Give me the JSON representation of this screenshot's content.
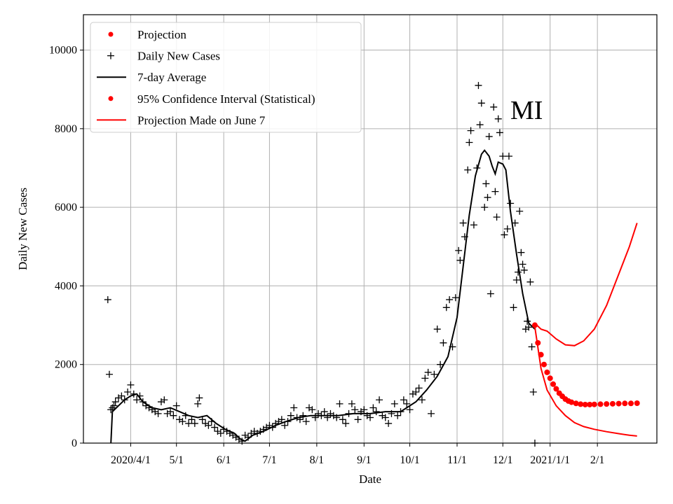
{
  "chart_data": {
    "type": "line",
    "annotation": "MI",
    "xlabel": "Date",
    "ylabel": "Daily New Cases",
    "ylim": [
      0,
      10900
    ],
    "xlim": [
      "2020-03-01",
      "2021-03-12"
    ],
    "grid": true,
    "legend_placement": "top-left",
    "x_ticks": [
      {
        "date": "2020-04-01",
        "label": "2020/4/1"
      },
      {
        "date": "2020-05-01",
        "label": "5/1"
      },
      {
        "date": "2020-06-01",
        "label": "6/1"
      },
      {
        "date": "2020-07-01",
        "label": "7/1"
      },
      {
        "date": "2020-08-01",
        "label": "8/1"
      },
      {
        "date": "2020-09-01",
        "label": "9/1"
      },
      {
        "date": "2020-10-01",
        "label": "10/1"
      },
      {
        "date": "2020-11-01",
        "label": "11/1"
      },
      {
        "date": "2020-12-01",
        "label": "12/1"
      },
      {
        "date": "2021-01-01",
        "label": "2021/1/1"
      },
      {
        "date": "2021-02-01",
        "label": "2/1"
      }
    ],
    "y_ticks": [
      0,
      2000,
      4000,
      6000,
      8000,
      10000
    ],
    "legend": [
      {
        "label": "Projection",
        "marker": "dot",
        "color": "#ff0000"
      },
      {
        "label": "Daily New Cases",
        "marker": "plus",
        "color": "#000000"
      },
      {
        "label": "7-day Average",
        "marker": "line",
        "color": "#000000"
      },
      {
        "label": "95% Confidence Interval (Statistical)",
        "marker": "dot",
        "color": "#ff0000"
      },
      {
        "label": "Projection Made on June 7",
        "marker": "line",
        "color": "#ff0000"
      }
    ],
    "series": [
      {
        "name": "Daily New Cases",
        "marker": "plus",
        "color": "#000000",
        "points": [
          [
            "2020-03-17",
            3650
          ],
          [
            "2020-03-18",
            1750
          ],
          [
            "2020-03-19",
            850
          ],
          [
            "2020-03-20",
            900
          ],
          [
            "2020-03-21",
            950
          ],
          [
            "2020-03-22",
            1050
          ],
          [
            "2020-03-24",
            1150
          ],
          [
            "2020-03-26",
            1200
          ],
          [
            "2020-03-28",
            1100
          ],
          [
            "2020-03-30",
            1300
          ],
          [
            "2020-04-01",
            1480
          ],
          [
            "2020-04-03",
            1250
          ],
          [
            "2020-04-05",
            1100
          ],
          [
            "2020-04-07",
            1200
          ],
          [
            "2020-04-09",
            1050
          ],
          [
            "2020-04-11",
            950
          ],
          [
            "2020-04-13",
            900
          ],
          [
            "2020-04-15",
            850
          ],
          [
            "2020-04-17",
            800
          ],
          [
            "2020-04-19",
            750
          ],
          [
            "2020-04-21",
            1050
          ],
          [
            "2020-04-23",
            1100
          ],
          [
            "2020-04-25",
            750
          ],
          [
            "2020-04-27",
            800
          ],
          [
            "2020-04-29",
            700
          ],
          [
            "2020-05-01",
            950
          ],
          [
            "2020-05-03",
            600
          ],
          [
            "2020-05-05",
            550
          ],
          [
            "2020-05-07",
            700
          ],
          [
            "2020-05-09",
            500
          ],
          [
            "2020-05-11",
            600
          ],
          [
            "2020-05-13",
            500
          ],
          [
            "2020-05-15",
            1000
          ],
          [
            "2020-05-16",
            1150
          ],
          [
            "2020-05-18",
            600
          ],
          [
            "2020-05-20",
            500
          ],
          [
            "2020-05-22",
            450
          ],
          [
            "2020-05-24",
            550
          ],
          [
            "2020-05-26",
            400
          ],
          [
            "2020-05-28",
            300
          ],
          [
            "2020-05-30",
            250
          ],
          [
            "2020-06-01",
            350
          ],
          [
            "2020-06-03",
            300
          ],
          [
            "2020-06-05",
            250
          ],
          [
            "2020-06-07",
            200
          ],
          [
            "2020-06-09",
            150
          ],
          [
            "2020-06-11",
            100
          ],
          [
            "2020-06-13",
            50
          ],
          [
            "2020-06-15",
            200
          ],
          [
            "2020-06-17",
            150
          ],
          [
            "2020-06-19",
            250
          ],
          [
            "2020-06-21",
            300
          ],
          [
            "2020-06-23",
            250
          ],
          [
            "2020-06-25",
            300
          ],
          [
            "2020-06-27",
            350
          ],
          [
            "2020-06-29",
            400
          ],
          [
            "2020-07-01",
            450
          ],
          [
            "2020-07-03",
            400
          ],
          [
            "2020-07-05",
            500
          ],
          [
            "2020-07-07",
            550
          ],
          [
            "2020-07-09",
            600
          ],
          [
            "2020-07-11",
            450
          ],
          [
            "2020-07-13",
            550
          ],
          [
            "2020-07-15",
            700
          ],
          [
            "2020-07-17",
            900
          ],
          [
            "2020-07-19",
            650
          ],
          [
            "2020-07-21",
            600
          ],
          [
            "2020-07-23",
            700
          ],
          [
            "2020-07-25",
            550
          ],
          [
            "2020-07-27",
            900
          ],
          [
            "2020-07-29",
            850
          ],
          [
            "2020-07-31",
            650
          ],
          [
            "2020-08-02",
            750
          ],
          [
            "2020-08-04",
            700
          ],
          [
            "2020-08-06",
            800
          ],
          [
            "2020-08-08",
            650
          ],
          [
            "2020-08-10",
            750
          ],
          [
            "2020-08-12",
            700
          ],
          [
            "2020-08-14",
            650
          ],
          [
            "2020-08-16",
            1000
          ],
          [
            "2020-08-18",
            600
          ],
          [
            "2020-08-20",
            500
          ],
          [
            "2020-08-22",
            750
          ],
          [
            "2020-08-24",
            1000
          ],
          [
            "2020-08-26",
            850
          ],
          [
            "2020-08-28",
            600
          ],
          [
            "2020-08-30",
            800
          ],
          [
            "2020-09-01",
            850
          ],
          [
            "2020-09-03",
            700
          ],
          [
            "2020-09-05",
            650
          ],
          [
            "2020-09-07",
            900
          ],
          [
            "2020-09-09",
            800
          ],
          [
            "2020-09-11",
            1100
          ],
          [
            "2020-09-13",
            700
          ],
          [
            "2020-09-15",
            650
          ],
          [
            "2020-09-17",
            500
          ],
          [
            "2020-09-19",
            750
          ],
          [
            "2020-09-21",
            1000
          ],
          [
            "2020-09-23",
            700
          ],
          [
            "2020-09-25",
            800
          ],
          [
            "2020-09-27",
            1100
          ],
          [
            "2020-09-29",
            1000
          ],
          [
            "2020-10-01",
            850
          ],
          [
            "2020-10-03",
            1250
          ],
          [
            "2020-10-05",
            1300
          ],
          [
            "2020-10-07",
            1400
          ],
          [
            "2020-10-09",
            1100
          ],
          [
            "2020-10-11",
            1650
          ],
          [
            "2020-10-13",
            1800
          ],
          [
            "2020-10-15",
            750
          ],
          [
            "2020-10-17",
            1750
          ],
          [
            "2020-10-19",
            2900
          ],
          [
            "2020-10-21",
            2000
          ],
          [
            "2020-10-23",
            2550
          ],
          [
            "2020-10-25",
            3450
          ],
          [
            "2020-10-27",
            3650
          ],
          [
            "2020-10-29",
            2450
          ],
          [
            "2020-10-31",
            3700
          ],
          [
            "2020-11-02",
            4900
          ],
          [
            "2020-11-03",
            4650
          ],
          [
            "2020-11-05",
            5600
          ],
          [
            "2020-11-06",
            5250
          ],
          [
            "2020-11-08",
            6950
          ],
          [
            "2020-11-09",
            7650
          ],
          [
            "2020-11-10",
            7950
          ],
          [
            "2020-11-12",
            5550
          ],
          [
            "2020-11-14",
            7000
          ],
          [
            "2020-11-15",
            9100
          ],
          [
            "2020-11-16",
            8100
          ],
          [
            "2020-11-17",
            8650
          ],
          [
            "2020-11-19",
            6000
          ],
          [
            "2020-11-20",
            6600
          ],
          [
            "2020-11-21",
            6250
          ],
          [
            "2020-11-22",
            7800
          ],
          [
            "2020-11-23",
            3800
          ],
          [
            "2020-11-25",
            8550
          ],
          [
            "2020-11-26",
            6400
          ],
          [
            "2020-11-27",
            5750
          ],
          [
            "2020-11-28",
            8250
          ],
          [
            "2020-11-29",
            7900
          ],
          [
            "2020-12-01",
            7300
          ],
          [
            "2020-12-02",
            5300
          ],
          [
            "2020-12-04",
            5450
          ],
          [
            "2020-12-05",
            7300
          ],
          [
            "2020-12-06",
            6100
          ],
          [
            "2020-12-08",
            3450
          ],
          [
            "2020-12-09",
            5600
          ],
          [
            "2020-12-10",
            4150
          ],
          [
            "2020-12-11",
            4350
          ],
          [
            "2020-12-12",
            5900
          ],
          [
            "2020-12-13",
            4850
          ],
          [
            "2020-12-14",
            4550
          ],
          [
            "2020-12-15",
            4400
          ],
          [
            "2020-12-16",
            2900
          ],
          [
            "2020-12-17",
            3100
          ],
          [
            "2020-12-18",
            2950
          ],
          [
            "2020-12-19",
            4100
          ],
          [
            "2020-12-20",
            2450
          ],
          [
            "2020-12-21",
            1300
          ],
          [
            "2020-12-22",
            0
          ]
        ]
      },
      {
        "name": "7-day Average",
        "style": "line",
        "color": "#000000",
        "points": [
          [
            "2020-03-19",
            0
          ],
          [
            "2020-03-20",
            800
          ],
          [
            "2020-03-24",
            950
          ],
          [
            "2020-03-28",
            1100
          ],
          [
            "2020-04-01",
            1200
          ],
          [
            "2020-04-05",
            1250
          ],
          [
            "2020-04-09",
            1050
          ],
          [
            "2020-04-15",
            900
          ],
          [
            "2020-04-21",
            850
          ],
          [
            "2020-04-27",
            900
          ],
          [
            "2020-05-03",
            800
          ],
          [
            "2020-05-09",
            700
          ],
          [
            "2020-05-15",
            650
          ],
          [
            "2020-05-21",
            700
          ],
          [
            "2020-05-27",
            500
          ],
          [
            "2020-06-02",
            350
          ],
          [
            "2020-06-08",
            250
          ],
          [
            "2020-06-12",
            100
          ],
          [
            "2020-06-15",
            50
          ],
          [
            "2020-06-20",
            200
          ],
          [
            "2020-06-27",
            300
          ],
          [
            "2020-07-05",
            450
          ],
          [
            "2020-07-12",
            550
          ],
          [
            "2020-07-20",
            650
          ],
          [
            "2020-07-28",
            700
          ],
          [
            "2020-08-05",
            700
          ],
          [
            "2020-08-15",
            700
          ],
          [
            "2020-08-25",
            750
          ],
          [
            "2020-09-05",
            750
          ],
          [
            "2020-09-15",
            800
          ],
          [
            "2020-09-25",
            800
          ],
          [
            "2020-10-05",
            1050
          ],
          [
            "2020-10-12",
            1350
          ],
          [
            "2020-10-19",
            1700
          ],
          [
            "2020-10-26",
            2200
          ],
          [
            "2020-11-01",
            3200
          ],
          [
            "2020-11-05",
            4500
          ],
          [
            "2020-11-09",
            5800
          ],
          [
            "2020-11-13",
            6800
          ],
          [
            "2020-11-17",
            7350
          ],
          [
            "2020-11-19",
            7450
          ],
          [
            "2020-11-22",
            7300
          ],
          [
            "2020-11-24",
            7050
          ],
          [
            "2020-11-26",
            6850
          ],
          [
            "2020-11-28",
            7150
          ],
          [
            "2020-12-01",
            7100
          ],
          [
            "2020-12-03",
            6950
          ],
          [
            "2020-12-06",
            5900
          ],
          [
            "2020-12-10",
            4800
          ],
          [
            "2020-12-14",
            3800
          ],
          [
            "2020-12-18",
            3050
          ],
          [
            "2020-12-22",
            2900
          ]
        ]
      },
      {
        "name": "Projection",
        "marker": "dot",
        "color": "#ff0000",
        "points": [
          [
            "2020-12-22",
            3000
          ],
          [
            "2020-12-24",
            2550
          ],
          [
            "2020-12-26",
            2250
          ],
          [
            "2020-12-28",
            2000
          ],
          [
            "2020-12-30",
            1800
          ],
          [
            "2021-01-01",
            1650
          ],
          [
            "2021-01-03",
            1500
          ],
          [
            "2021-01-05",
            1380
          ],
          [
            "2021-01-07",
            1270
          ],
          [
            "2021-01-09",
            1190
          ],
          [
            "2021-01-11",
            1120
          ],
          [
            "2021-01-13",
            1070
          ],
          [
            "2021-01-15",
            1040
          ],
          [
            "2021-01-18",
            1010
          ],
          [
            "2021-01-21",
            990
          ],
          [
            "2021-01-24",
            980
          ],
          [
            "2021-01-27",
            980
          ],
          [
            "2021-01-30",
            985
          ],
          [
            "2021-02-03",
            990
          ],
          [
            "2021-02-07",
            995
          ],
          [
            "2021-02-11",
            1000
          ],
          [
            "2021-02-15",
            1005
          ],
          [
            "2021-02-19",
            1010
          ],
          [
            "2021-02-23",
            1010
          ],
          [
            "2021-02-27",
            1015
          ]
        ]
      },
      {
        "name": "95% Confidence Interval (Statistical)",
        "style": "line",
        "color": "#ff0000",
        "upper": [
          [
            "2020-12-22",
            3050
          ],
          [
            "2020-12-26",
            2900
          ],
          [
            "2020-12-30",
            2850
          ],
          [
            "2021-01-05",
            2650
          ],
          [
            "2021-01-11",
            2500
          ],
          [
            "2021-01-17",
            2480
          ],
          [
            "2021-01-23",
            2600
          ],
          [
            "2021-01-30",
            2900
          ],
          [
            "2021-02-07",
            3500
          ],
          [
            "2021-02-15",
            4300
          ],
          [
            "2021-02-22",
            5000
          ],
          [
            "2021-02-27",
            5600
          ]
        ],
        "lower": [
          [
            "2020-12-22",
            2950
          ],
          [
            "2020-12-26",
            1900
          ],
          [
            "2020-12-30",
            1350
          ],
          [
            "2021-01-05",
            950
          ],
          [
            "2021-01-11",
            700
          ],
          [
            "2021-01-17",
            520
          ],
          [
            "2021-01-23",
            420
          ],
          [
            "2021-01-30",
            350
          ],
          [
            "2021-02-07",
            290
          ],
          [
            "2021-02-15",
            240
          ],
          [
            "2021-02-22",
            200
          ],
          [
            "2021-02-27",
            180
          ]
        ]
      }
    ]
  }
}
